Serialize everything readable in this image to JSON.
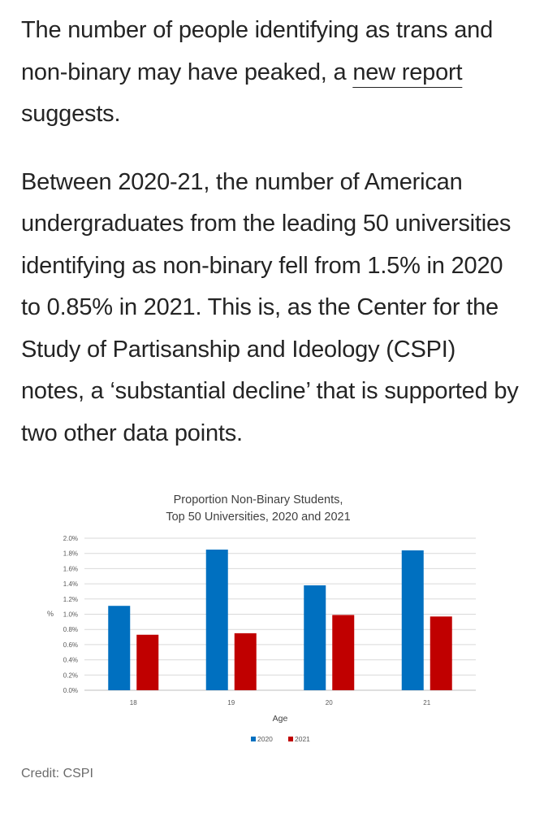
{
  "article": {
    "paragraph1": {
      "before": "The number of people identifying as trans and non-binary may have peaked, a ",
      "link_text": "new report",
      "after": " suggests."
    },
    "paragraph2": "Between 2020-21, the number of American undergraduates from the leading 50 universities identifying as non-binary fell from 1.5% in 2020 to 0.85% in 2021. This is, as the Center for the Study of Partisanship and Ideology (CSPI) notes, a ‘substantial decline’ that is supported by two other data points."
  },
  "figure": {
    "caption": "Credit: CSPI"
  },
  "chart_data": {
    "type": "bar",
    "title": "Proportion Non-Binary Students,",
    "subtitle": "Top 50 Universities, 2020 and 2021",
    "xlabel": "Age",
    "ylabel": "%",
    "categories": [
      "18",
      "19",
      "20",
      "21"
    ],
    "series": [
      {
        "name": "2020",
        "color": "#0070C0",
        "values": [
          1.11,
          1.85,
          1.38,
          1.84
        ]
      },
      {
        "name": "2021",
        "color": "#C00000",
        "values": [
          0.73,
          0.75,
          0.99,
          0.97
        ]
      }
    ],
    "ylim": [
      0,
      2.0
    ],
    "yticks": [
      "0.0%",
      "0.2%",
      "0.4%",
      "0.6%",
      "0.8%",
      "1.0%",
      "1.2%",
      "1.4%",
      "1.6%",
      "1.8%",
      "2.0%"
    ],
    "grid": true,
    "legend": "bottom"
  }
}
